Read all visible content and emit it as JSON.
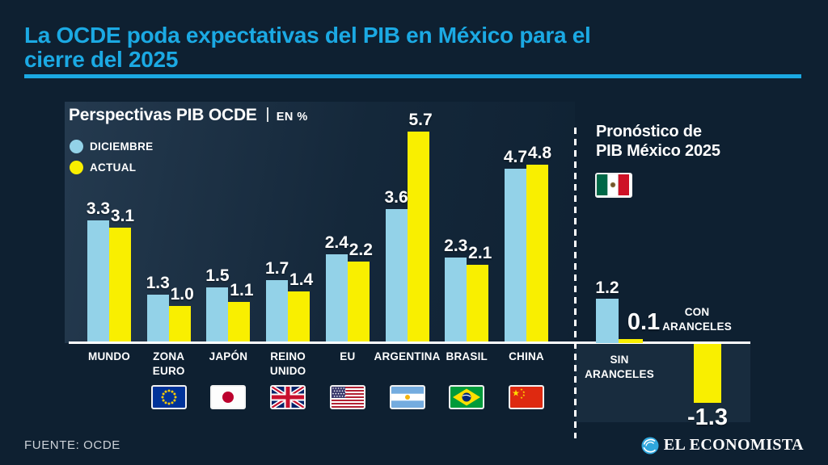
{
  "page": {
    "background_color": "#0e2031",
    "accent_color": "#1ba9e3",
    "bar_blue": "#93d2e8",
    "bar_yellow": "#f9ef00"
  },
  "header": {
    "title_line1": "La OCDE poda expectativas del PIB en México para el",
    "title_line2": "cierre del 2025"
  },
  "chart_data": {
    "type": "bar",
    "title": "Perspectivas PIB OCDE",
    "units_label": "EN %",
    "legend": [
      {
        "name": "DICIEMBRE",
        "color": "#93d2e8"
      },
      {
        "name": "ACTUAL",
        "color": "#f9ef00"
      }
    ],
    "legend_position": "top-left",
    "grid": false,
    "ylim": [
      -1.5,
      6
    ],
    "categories": [
      "MUNDO",
      "ZONA EURO",
      "JAPÓN",
      "REINO UNIDO",
      "EU",
      "ARGENTINA",
      "BRASIL",
      "CHINA"
    ],
    "category_lines": [
      [
        "MUNDO"
      ],
      [
        "ZONA",
        "EURO"
      ],
      [
        "JAPÓN"
      ],
      [
        "REINO",
        "UNIDO"
      ],
      [
        "EU"
      ],
      [
        "ARGENTINA"
      ],
      [
        "BRASIL"
      ],
      [
        "CHINA"
      ]
    ],
    "category_flags": [
      null,
      "eu-flag",
      "japan-flag",
      "uk-flag",
      "usa-flag",
      "argentina-flag",
      "brazil-flag",
      "china-flag"
    ],
    "series": [
      {
        "name": "DICIEMBRE",
        "values": [
          3.3,
          1.3,
          1.5,
          1.7,
          2.4,
          3.6,
          2.3,
          4.7
        ]
      },
      {
        "name": "ACTUAL",
        "values": [
          3.1,
          1.0,
          1.1,
          1.4,
          2.2,
          5.7,
          2.1,
          4.8
        ]
      }
    ]
  },
  "mexico_panel": {
    "title_line1": "Pronóstico de",
    "title_line2": "PIB México 2025",
    "flag": "mexico-flag",
    "chart_data": {
      "type": "bar",
      "groups": [
        {
          "label": "SIN ARANCELES",
          "label_lines": [
            "SIN",
            "ARANCELES"
          ],
          "diciembre": 1.2,
          "actual": 0.1
        },
        {
          "label": "CON ARANCELES",
          "label_lines": [
            "CON",
            "ARANCELES"
          ],
          "actual": -1.3
        }
      ]
    }
  },
  "footer": {
    "source": "FUENTE: OCDE",
    "brand": "EL ECONOMISTA"
  }
}
